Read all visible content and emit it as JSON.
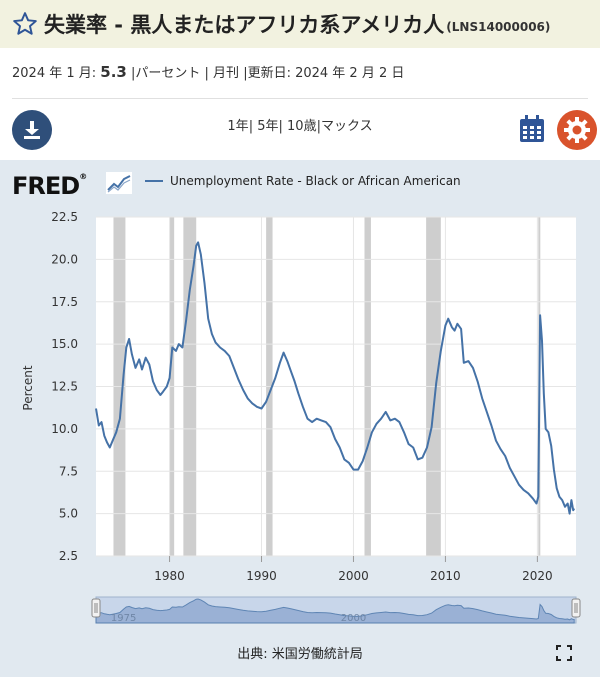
{
  "header": {
    "title": "失業率 - 黒人またはアフリカ系アメリカ人",
    "series_id": "(LNS14000006)"
  },
  "meta": {
    "date_label": "2024 年 1 月:",
    "value": "5.3",
    "units": "|パーセント",
    "frequency": "| 月刊",
    "updated": "|更新日: 2024 年 2 月 2 日"
  },
  "controls": {
    "range_1y": "1年",
    "range_5y": "5年",
    "range_10y": "10歳",
    "range_max": "マックス",
    "sep": "|"
  },
  "brand": {
    "logo_text": "FRED",
    "reg_mark": "®"
  },
  "footer": {
    "source": "出典: 米国労働統計局"
  },
  "colors": {
    "line": "#4572a7",
    "recession": "#c9c9c9",
    "panel": "#e1e9f0",
    "settings": "#d9532c",
    "download": "#2f4f7a"
  },
  "chart_data": {
    "type": "line",
    "title": "",
    "xlabel": "",
    "ylabel": "Percent",
    "legend": "top-left",
    "grid": true,
    "series": [
      {
        "name": "Unemployment Rate - Black or African American",
        "points": [
          [
            1972.0,
            11.2
          ],
          [
            1972.3,
            10.2
          ],
          [
            1972.6,
            10.4
          ],
          [
            1972.9,
            9.6
          ],
          [
            1973.2,
            9.2
          ],
          [
            1973.5,
            8.9
          ],
          [
            1973.8,
            9.3
          ],
          [
            1974.2,
            9.8
          ],
          [
            1974.6,
            10.6
          ],
          [
            1975.0,
            13.2
          ],
          [
            1975.3,
            14.8
          ],
          [
            1975.6,
            15.3
          ],
          [
            1975.9,
            14.4
          ],
          [
            1976.3,
            13.6
          ],
          [
            1976.7,
            14.1
          ],
          [
            1977.0,
            13.5
          ],
          [
            1977.4,
            14.2
          ],
          [
            1977.8,
            13.8
          ],
          [
            1978.2,
            12.8
          ],
          [
            1978.6,
            12.3
          ],
          [
            1979.0,
            12.0
          ],
          [
            1979.3,
            12.2
          ],
          [
            1979.7,
            12.5
          ],
          [
            1980.0,
            13.0
          ],
          [
            1980.3,
            14.8
          ],
          [
            1980.7,
            14.6
          ],
          [
            1981.0,
            15.0
          ],
          [
            1981.4,
            14.8
          ],
          [
            1981.8,
            16.4
          ],
          [
            1982.2,
            18.2
          ],
          [
            1982.6,
            19.6
          ],
          [
            1982.9,
            20.8
          ],
          [
            1983.1,
            21.0
          ],
          [
            1983.4,
            20.3
          ],
          [
            1983.8,
            18.6
          ],
          [
            1984.2,
            16.5
          ],
          [
            1984.6,
            15.6
          ],
          [
            1985.0,
            15.1
          ],
          [
            1985.5,
            14.8
          ],
          [
            1986.0,
            14.6
          ],
          [
            1986.5,
            14.3
          ],
          [
            1987.0,
            13.6
          ],
          [
            1987.5,
            12.9
          ],
          [
            1988.0,
            12.3
          ],
          [
            1988.5,
            11.8
          ],
          [
            1989.0,
            11.5
          ],
          [
            1989.5,
            11.3
          ],
          [
            1990.0,
            11.2
          ],
          [
            1990.5,
            11.6
          ],
          [
            1991.0,
            12.3
          ],
          [
            1991.5,
            13.0
          ],
          [
            1992.0,
            13.9
          ],
          [
            1992.4,
            14.5
          ],
          [
            1992.8,
            14.0
          ],
          [
            1993.2,
            13.4
          ],
          [
            1993.6,
            12.8
          ],
          [
            1994.0,
            12.1
          ],
          [
            1994.5,
            11.3
          ],
          [
            1995.0,
            10.6
          ],
          [
            1995.5,
            10.4
          ],
          [
            1996.0,
            10.6
          ],
          [
            1996.5,
            10.5
          ],
          [
            1997.0,
            10.4
          ],
          [
            1997.5,
            10.1
          ],
          [
            1998.0,
            9.4
          ],
          [
            1998.5,
            8.9
          ],
          [
            1999.0,
            8.2
          ],
          [
            1999.5,
            8.0
          ],
          [
            2000.0,
            7.6
          ],
          [
            2000.5,
            7.6
          ],
          [
            2001.0,
            8.1
          ],
          [
            2001.5,
            8.9
          ],
          [
            2002.0,
            9.8
          ],
          [
            2002.5,
            10.3
          ],
          [
            2003.0,
            10.6
          ],
          [
            2003.5,
            11.0
          ],
          [
            2004.0,
            10.5
          ],
          [
            2004.5,
            10.6
          ],
          [
            2005.0,
            10.4
          ],
          [
            2005.5,
            9.8
          ],
          [
            2006.0,
            9.1
          ],
          [
            2006.5,
            8.9
          ],
          [
            2007.0,
            8.2
          ],
          [
            2007.5,
            8.3
          ],
          [
            2008.0,
            8.9
          ],
          [
            2008.5,
            10.1
          ],
          [
            2009.0,
            12.7
          ],
          [
            2009.5,
            14.6
          ],
          [
            2010.0,
            16.1
          ],
          [
            2010.3,
            16.5
          ],
          [
            2010.7,
            16.0
          ],
          [
            2011.0,
            15.8
          ],
          [
            2011.3,
            16.2
          ],
          [
            2011.7,
            15.9
          ],
          [
            2012.0,
            13.9
          ],
          [
            2012.5,
            14.0
          ],
          [
            2013.0,
            13.6
          ],
          [
            2013.5,
            12.8
          ],
          [
            2014.0,
            11.8
          ],
          [
            2014.5,
            11.0
          ],
          [
            2015.0,
            10.2
          ],
          [
            2015.5,
            9.3
          ],
          [
            2016.0,
            8.8
          ],
          [
            2016.5,
            8.4
          ],
          [
            2017.0,
            7.7
          ],
          [
            2017.5,
            7.2
          ],
          [
            2018.0,
            6.7
          ],
          [
            2018.5,
            6.4
          ],
          [
            2019.0,
            6.2
          ],
          [
            2019.5,
            5.9
          ],
          [
            2019.9,
            5.6
          ],
          [
            2020.1,
            6.0
          ],
          [
            2020.3,
            16.7
          ],
          [
            2020.5,
            15.2
          ],
          [
            2020.7,
            12.1
          ],
          [
            2020.9,
            10.0
          ],
          [
            2021.2,
            9.8
          ],
          [
            2021.5,
            9.0
          ],
          [
            2021.8,
            7.6
          ],
          [
            2022.1,
            6.5
          ],
          [
            2022.4,
            6.0
          ],
          [
            2022.7,
            5.8
          ],
          [
            2023.0,
            5.4
          ],
          [
            2023.3,
            5.6
          ],
          [
            2023.5,
            5.0
          ],
          [
            2023.7,
            5.8
          ],
          [
            2023.9,
            5.2
          ],
          [
            2024.0,
            5.3
          ]
        ]
      }
    ],
    "recessions": [
      [
        1973.9,
        1975.2
      ],
      [
        1980.0,
        1980.5
      ],
      [
        1981.5,
        1982.9
      ],
      [
        1990.5,
        1991.2
      ],
      [
        2001.2,
        2001.9
      ],
      [
        2007.9,
        2009.5
      ],
      [
        2020.1,
        2020.3
      ]
    ],
    "xlim": [
      1972,
      2024.2
    ],
    "ylim": [
      2.5,
      22.5
    ],
    "x_ticks": [
      1980,
      1990,
      2000,
      2010,
      2020
    ],
    "y_ticks": [
      2.5,
      5.0,
      7.5,
      10.0,
      12.5,
      15.0,
      17.5,
      20.0,
      22.5
    ],
    "y_tick_labels": [
      "2.5",
      "5.0",
      "7.5",
      "10.0",
      "12.5",
      "15.0",
      "17.5",
      "20.0",
      "22.5"
    ],
    "x_tick_labels": [
      "1980",
      "1990",
      "2000",
      "2010",
      "2020"
    ],
    "navigator_labels": [
      "1975",
      "2000"
    ]
  }
}
